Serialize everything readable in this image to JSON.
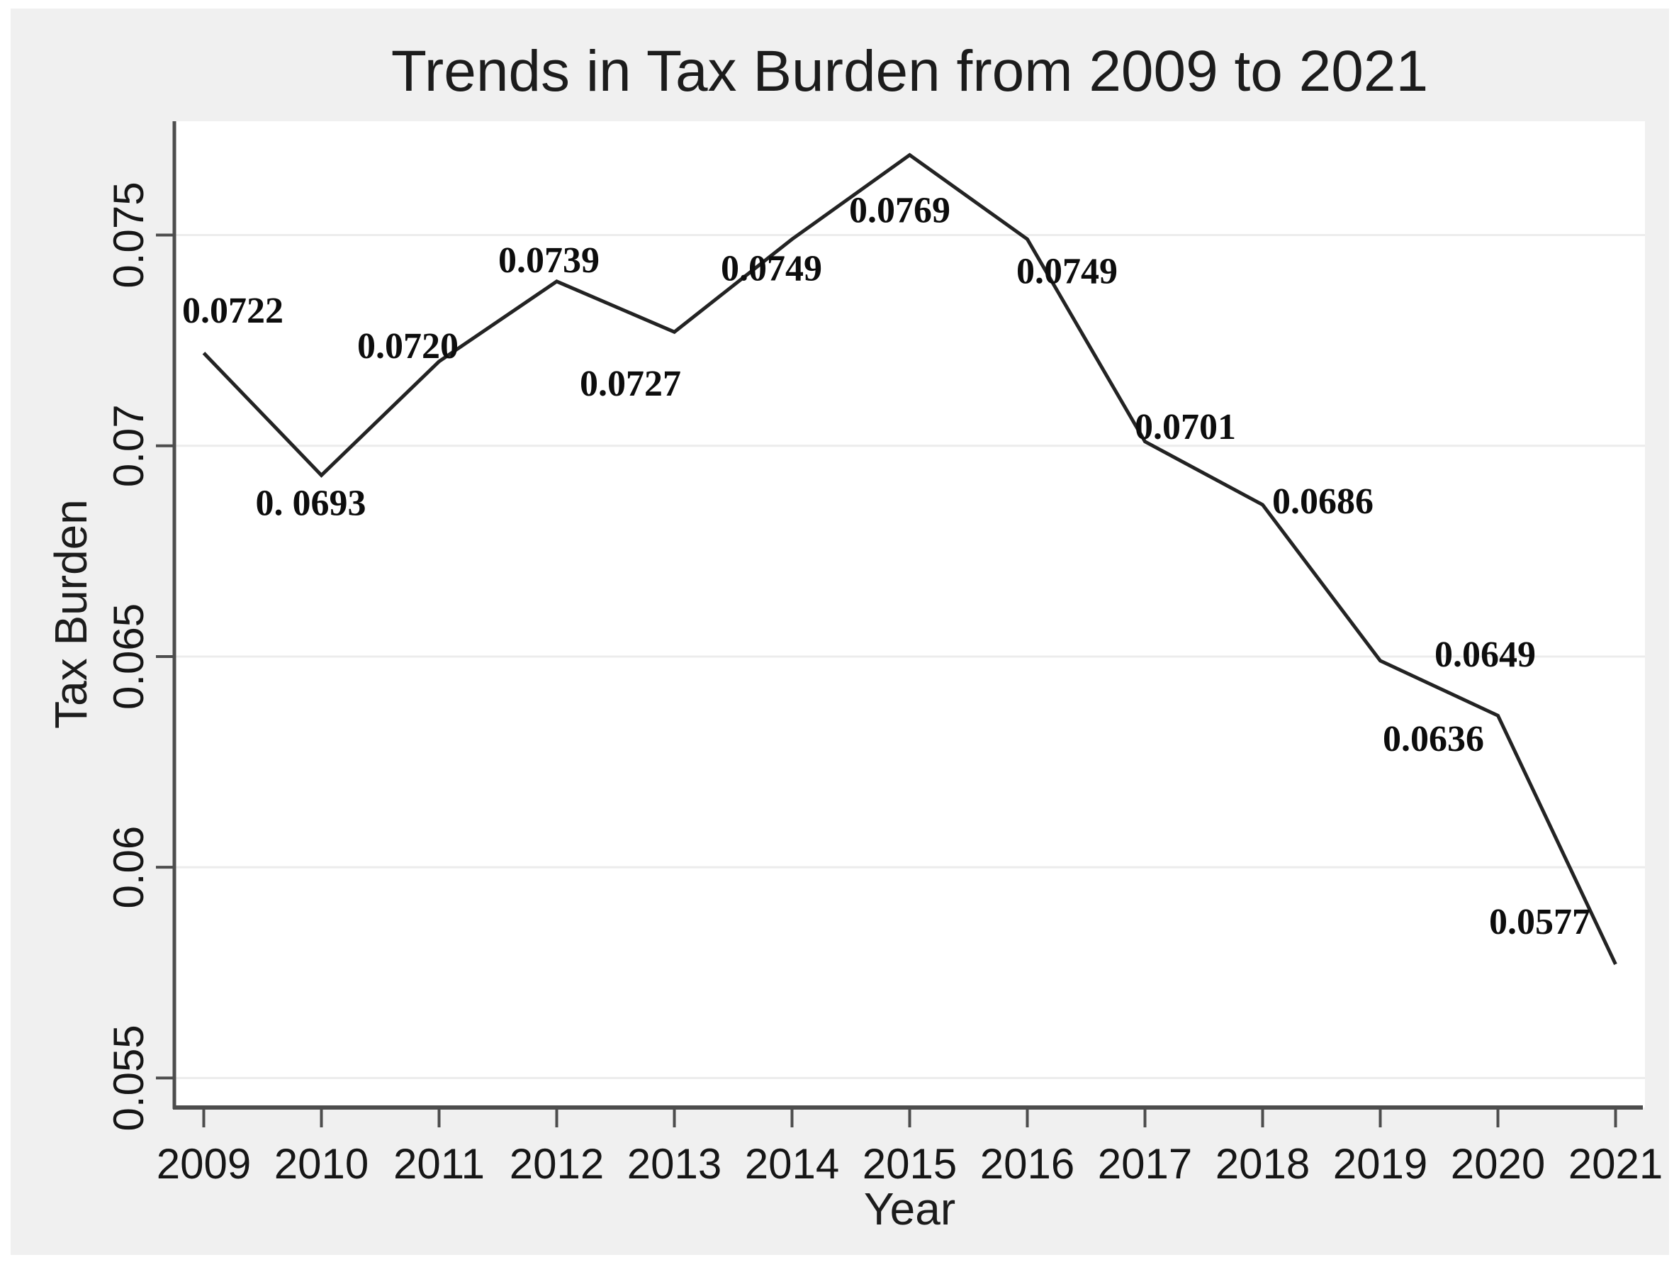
{
  "chart_data": {
    "type": "line",
    "title": "Trends in Tax Burden from 2009 to 2021",
    "xlabel": "Year",
    "ylabel": "Tax Burden",
    "x": [
      2009,
      2010,
      2011,
      2012,
      2013,
      2014,
      2015,
      2016,
      2017,
      2018,
      2019,
      2020,
      2021
    ],
    "series": [
      {
        "name": "Tax Burden",
        "values": [
          0.0722,
          0.0693,
          0.072,
          0.0739,
          0.0727,
          0.0749,
          0.0769,
          0.0749,
          0.0701,
          0.0686,
          0.0649,
          0.0636,
          0.0577
        ],
        "point_labels": [
          "0.0722",
          "0. 0693",
          "0.0720",
          "0.0739",
          "0.0727",
          "0.0749",
          "0.0769",
          "0.0749",
          "0.0701",
          "0.0686",
          "0.0649",
          "0.0636",
          "0.0577"
        ]
      }
    ],
    "x_tick_labels": [
      "2009",
      "2010",
      "2011",
      "2012",
      "2013",
      "2014",
      "2015",
      "2016",
      "2017",
      "2018",
      "2019",
      "2020",
      "2021"
    ],
    "y_ticks": [
      0.055,
      0.06,
      0.065,
      0.07,
      0.075
    ],
    "y_tick_labels": [
      "0.055",
      "0.06",
      "0.065",
      "0.07",
      "0.075"
    ],
    "xlim": [
      2008.75,
      2021.25
    ],
    "ylim": [
      0.0543,
      0.0777
    ],
    "grid": true,
    "legend": "none",
    "colors": {
      "line": "#232323",
      "outer_background": "#f0f0f0",
      "plot_background": "#ffffff",
      "gridline": "#ececec",
      "axis": "#4d4d4d",
      "text": "#161616"
    }
  }
}
